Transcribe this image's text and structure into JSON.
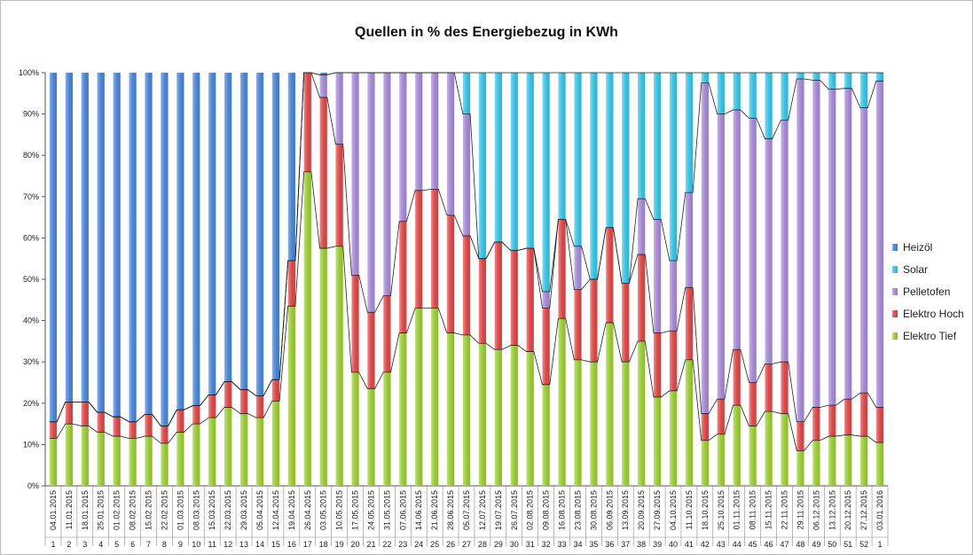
{
  "chart_data": {
    "type": "bar",
    "stacked": true,
    "percent_stacked": true,
    "title": "Quellen in % des Energiebezug in KWh",
    "xlabel": "",
    "ylabel": "",
    "ylim": [
      0,
      100
    ],
    "y_ticks": [
      "0%",
      "10%",
      "20%",
      "30%",
      "40%",
      "50%",
      "60%",
      "70%",
      "80%",
      "90%",
      "100%"
    ],
    "grid": false,
    "legend_position": "right",
    "dates": [
      "04.01.2015",
      "11.01.2015",
      "18.01.2015",
      "25.01.2015",
      "01.02.2015",
      "08.02.2015",
      "15.02.2015",
      "22.02.2015",
      "01.03.2015",
      "08.03.2015",
      "15.03.2015",
      "22.03.2015",
      "29.03.2015",
      "05.04.2015",
      "12.04.2015",
      "19.04.2015",
      "26.04.2015",
      "03.05.2015",
      "10.05.2015",
      "17.05.2015",
      "24.05.2015",
      "31.05.2015",
      "07.06.2015",
      "14.06.2015",
      "21.06.2015",
      "28.06.2015",
      "05.07.2015",
      "12.07.2015",
      "19.07.2015",
      "26.07.2015",
      "02.08.2015",
      "09.08.2015",
      "16.08.2015",
      "23.08.2015",
      "30.08.2015",
      "06.09.2015",
      "13.09.2015",
      "20.09.2015",
      "27.09.2015",
      "04.10.2015",
      "11.10.2015",
      "18.10.2015",
      "25.10.2015",
      "01.11.2015",
      "08.11.2015",
      "15.11.2015",
      "22.11.2015",
      "29.11.2015",
      "06.12.2015",
      "13.12.2015",
      "20.12.2015",
      "27.12.2015",
      "03.01.2016"
    ],
    "weeks": [
      "1",
      "2",
      "3",
      "4",
      "5",
      "6",
      "7",
      "8",
      "9",
      "10",
      "11",
      "12",
      "13",
      "14",
      "15",
      "16",
      "17",
      "18",
      "19",
      "20",
      "21",
      "22",
      "23",
      "24",
      "25",
      "26",
      "27",
      "28",
      "29",
      "30",
      "31",
      "32",
      "33",
      "34",
      "35",
      "36",
      "37",
      "38",
      "39",
      "40",
      "41",
      "42",
      "43",
      "44",
      "45",
      "46",
      "47",
      "48",
      "49",
      "50",
      "51",
      "52",
      "1"
    ],
    "series": [
      {
        "name": "Elektro Tief",
        "color": "#9acd32",
        "values": [
          11.5,
          15,
          14.5,
          13,
          12,
          11.5,
          12,
          10.3,
          13,
          15,
          16.5,
          19,
          17.5,
          16.5,
          20.5,
          43.5,
          76,
          57.5,
          58,
          27.5,
          23.5,
          27.5,
          37,
          43,
          43,
          37,
          36.5,
          34.5,
          33,
          34,
          32.5,
          24.5,
          40.5,
          30.5,
          30,
          39.5,
          30,
          35,
          21.5,
          23,
          30.5,
          11,
          12.5,
          19.5,
          14.5,
          18,
          17.5,
          8.5,
          11,
          12,
          12.3,
          12,
          10.5
        ]
      },
      {
        "name": "Elektro Hoch",
        "color": "#e04848",
        "values": [
          4,
          5.3,
          5.8,
          4.8,
          4.7,
          4,
          5.3,
          4.2,
          5.4,
          4.4,
          5.5,
          6.2,
          5.8,
          5.3,
          5.2,
          11,
          24,
          36.5,
          24.7,
          23.5,
          18.5,
          18.5,
          27,
          28.5,
          28.8,
          28.5,
          24,
          20.5,
          26,
          23,
          25,
          18.5,
          24,
          17,
          20,
          23,
          19,
          21,
          15.5,
          14.5,
          17.5,
          6.5,
          8.5,
          13.5,
          10.5,
          11.5,
          12.5,
          7,
          8,
          7.5,
          8.7,
          10.5,
          8.5
        ]
      },
      {
        "name": "Pelletofen",
        "color": "#a58ad6",
        "values": [
          0,
          0,
          0,
          0,
          0,
          0,
          0,
          0,
          0,
          0,
          0,
          0,
          0,
          0,
          0,
          0,
          0,
          5.5,
          17.3,
          49,
          58,
          54,
          36,
          28.5,
          28.2,
          34.5,
          29.5,
          0,
          0,
          0,
          0,
          4,
          0,
          10.5,
          0,
          0,
          0,
          13.5,
          27.5,
          17,
          23,
          80,
          69,
          58,
          64,
          54.5,
          58.5,
          83,
          79.2,
          76.5,
          75.2,
          69,
          79
        ]
      },
      {
        "name": "Solar",
        "color": "#38c4e6",
        "values": [
          0,
          0,
          0,
          0,
          0,
          0,
          0,
          0,
          0,
          0,
          0,
          0,
          0,
          0,
          0,
          0,
          0,
          0,
          0,
          0,
          0,
          0,
          0,
          0,
          0,
          0,
          10,
          45,
          41,
          43,
          42.5,
          53,
          35.5,
          42,
          50,
          37.5,
          51,
          30.5,
          35.5,
          45.5,
          29,
          2.5,
          10,
          9,
          11,
          16,
          11.5,
          1.5,
          1.8,
          4,
          3.8,
          8.5,
          2
        ]
      },
      {
        "name": "Heizöl",
        "color": "#4a86d8",
        "values": [
          84.5,
          79.7,
          79.7,
          82.2,
          83.3,
          84.5,
          82.7,
          85.5,
          81.6,
          80.6,
          78,
          74.8,
          76.7,
          78.2,
          74.3,
          45.5,
          0,
          0.5,
          0,
          0,
          0,
          0,
          0,
          0,
          0,
          0,
          0,
          0,
          0,
          0,
          0,
          0,
          0,
          0,
          0,
          0,
          0,
          0,
          0,
          0,
          0,
          0,
          0,
          0,
          0,
          0,
          0,
          0,
          0,
          0,
          0,
          0,
          0
        ]
      }
    ]
  }
}
